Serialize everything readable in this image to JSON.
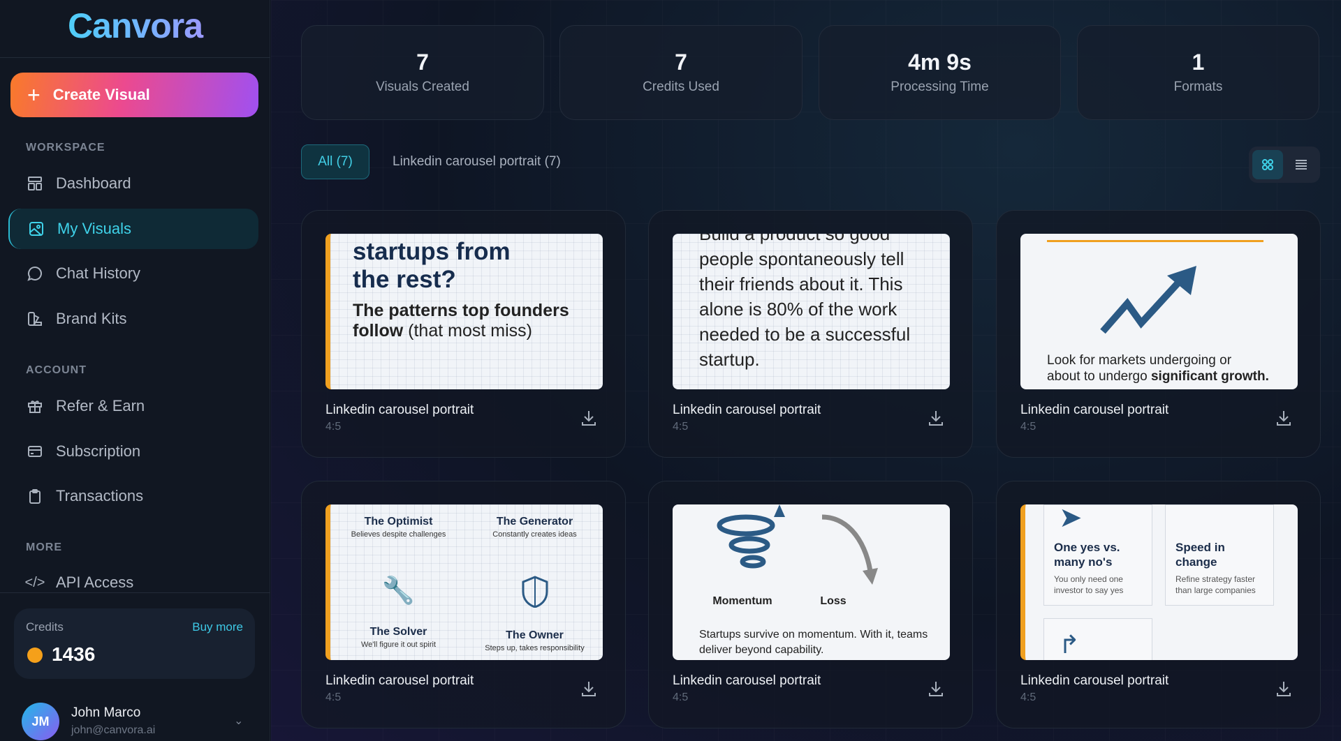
{
  "brand": {
    "name": "Canvora"
  },
  "sidebar": {
    "create_label": "Create Visual",
    "sections": {
      "workspace": "WORKSPACE",
      "account": "ACCOUNT",
      "more": "MORE"
    },
    "items": [
      {
        "label": "Dashboard",
        "icon": "dashboard-icon"
      },
      {
        "label": "My Visuals",
        "icon": "image-icon",
        "active": true
      },
      {
        "label": "Chat History",
        "icon": "chat-icon"
      },
      {
        "label": "Brand Kits",
        "icon": "palette-icon"
      },
      {
        "label": "Refer & Earn",
        "icon": "gift-icon"
      },
      {
        "label": "Subscription",
        "icon": "card-icon"
      },
      {
        "label": "Transactions",
        "icon": "clipboard-icon"
      },
      {
        "label": "API Access",
        "icon": "code-icon"
      }
    ],
    "credits": {
      "label": "Credits",
      "buy": "Buy more",
      "value": "1436",
      "coin_color": "#f5a01a"
    },
    "user": {
      "initials": "JM",
      "name": "John Marco",
      "email": "john@canvora.ai"
    }
  },
  "stats": [
    {
      "value": "7",
      "label": "Visuals Created"
    },
    {
      "value": "7",
      "label": "Credits Used"
    },
    {
      "value": "4m 9s",
      "label": "Processing Time"
    },
    {
      "value": "1",
      "label": "Formats"
    }
  ],
  "filters": {
    "all": "All (7)",
    "linkedin": "Linkedin carousel portrait (7)"
  },
  "cards": [
    {
      "title": "Linkedin carousel portrait",
      "ratio": "4:5",
      "thumb": {
        "h1": "startups from",
        "h2": "the rest?",
        "p1": "The patterns top founders",
        "p2b": "follow",
        "p2": " (that most miss)"
      }
    },
    {
      "title": "Linkedin carousel portrait",
      "ratio": "4:5",
      "thumb": {
        "top": "Build a product so good",
        "body": "people spontaneously tell their friends about it. This alone is 80% of the work needed to be a successful startup."
      }
    },
    {
      "title": "Linkedin carousel portrait",
      "ratio": "4:5",
      "thumb": {
        "p1": "Look for markets undergoing or",
        "p2": "about to undergo ",
        "p2b": "significant growth."
      }
    },
    {
      "title": "Linkedin carousel portrait",
      "ratio": "4:5",
      "thumb": {
        "cells": [
          {
            "t": "The Optimist",
            "s": "Believes despite challenges"
          },
          {
            "t": "The Generator",
            "s": "Constantly creates ideas"
          },
          {
            "t": "The Solver",
            "s": "We'll figure it out spirit"
          },
          {
            "t": "The Owner",
            "s": "Steps up, takes responsibility"
          }
        ]
      }
    },
    {
      "title": "Linkedin carousel portrait",
      "ratio": "4:5",
      "thumb": {
        "l": "Momentum",
        "r": "Loss",
        "body": "Startups survive on momentum. With it, teams deliver beyond capability."
      }
    },
    {
      "title": "Linkedin carousel portrait",
      "ratio": "4:5",
      "thumb": {
        "a_t": "One yes vs. many no's",
        "a_s": "You only need one investor to say yes",
        "b_t": "Speed in change",
        "b_s": "Refine strategy faster than large companies"
      }
    }
  ]
}
